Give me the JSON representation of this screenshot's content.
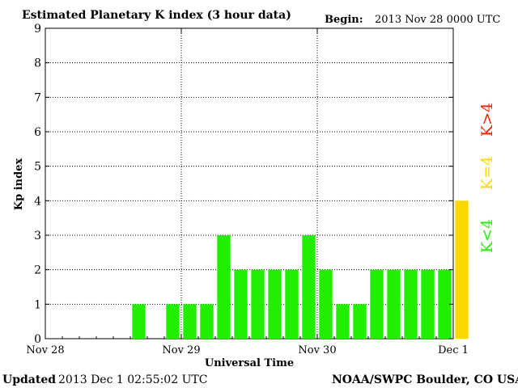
{
  "header": {
    "title": "Estimated Planetary K index (3 hour data)",
    "begin_label": "Begin:",
    "begin_value": "2013 Nov 28 0000 UTC"
  },
  "footer": {
    "updated_label": "Updated",
    "updated_value": "2013 Dec  1 02:55:02 UTC",
    "credit": "NOAA/SWPC Boulder, CO USA"
  },
  "legend": {
    "high": "K>4",
    "equal": "K=4",
    "low": "K<4"
  },
  "colors": {
    "low": "#22ee00",
    "equal": "#ffd700",
    "high": "#ee2200"
  },
  "chart_data": {
    "type": "bar",
    "title": "Estimated Planetary K index (3 hour data)",
    "xlabel": "Universal Time",
    "ylabel": "Kp index",
    "ylim": [
      0,
      9
    ],
    "yticks": [
      "0",
      "1",
      "2",
      "3",
      "4",
      "5",
      "6",
      "7",
      "8",
      "9"
    ],
    "x_tick_labels": [
      "Nov 28",
      "Nov 29",
      "Nov 30",
      "Dec 1"
    ],
    "bars_per_day": 8,
    "grid": true,
    "legend_position": "right",
    "values": [
      0,
      0,
      0,
      0,
      0,
      1,
      0,
      1,
      1,
      1,
      3,
      2,
      2,
      2,
      2,
      3,
      2,
      1,
      1,
      2,
      2,
      2,
      2,
      2,
      4
    ]
  }
}
